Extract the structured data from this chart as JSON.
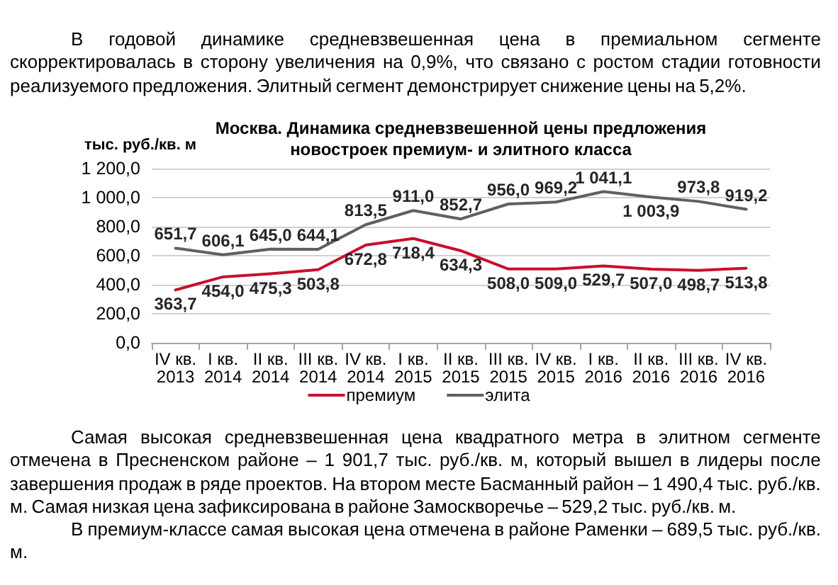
{
  "chart_data": {
    "type": "line",
    "title": "Москва. Динамика средневзвешенной цены предложения новостроек премиум- и элитного класса",
    "ylabel": "тыс. руб./кв. м",
    "categories": [
      "IV кв. 2013",
      "I кв. 2014",
      "II кв. 2014",
      "III кв. 2014",
      "IV кв. 2014",
      "I кв. 2015",
      "II кв. 2015",
      "III кв. 2015",
      "IV кв. 2015",
      "I кв. 2016",
      "II кв. 2016",
      "III кв. 2016",
      "IV кв. 2016"
    ],
    "series": [
      {
        "name": "премиум",
        "color": "#c8102e",
        "values": [
          363.7,
          454.0,
          475.3,
          503.8,
          672.8,
          718.4,
          634.3,
          508.0,
          509.0,
          529.7,
          507.0,
          498.7,
          513.8
        ],
        "value_labels": [
          "363,7",
          "454,0",
          "475,3",
          "503,8",
          "672,8",
          "718,4",
          "634,3",
          "508,0",
          "509,0",
          "529,7",
          "507,0",
          "498,7",
          "513,8"
        ]
      },
      {
        "name": "элита",
        "color": "#606060",
        "values": [
          651.7,
          606.1,
          645.0,
          644.1,
          813.5,
          911.0,
          852.7,
          956.0,
          969.2,
          1041.1,
          1003.9,
          973.8,
          919.2
        ],
        "value_labels": [
          "651,7",
          "606,1",
          "645,0",
          "644,1",
          "813,5",
          "911,0",
          "852,7",
          "956,0",
          "969,2",
          "1 041,1",
          "1 003,9",
          "973,8",
          "919,2"
        ]
      }
    ],
    "ylim": [
      0,
      1200
    ],
    "yticks": [
      {
        "value": 0,
        "label": "0,0"
      },
      {
        "value": 200,
        "label": "200,0"
      },
      {
        "value": 400,
        "label": "400,0"
      },
      {
        "value": 600,
        "label": "600,0"
      },
      {
        "value": 800,
        "label": "800,0"
      },
      {
        "value": 1000,
        "label": "1 000,0"
      },
      {
        "value": 1200,
        "label": "1 200,0"
      }
    ],
    "grid": "y",
    "legend": "bottom",
    "marker": "none",
    "annotations": [
      "В годовой динамике средневзвешенная цена в премиальном сегменте скорректировалась в сторону увеличения на 0,9%, что связано с ростом стадии готовности реализуемого предложения. Элитный сегмент демонстрирует снижение цены на 5,2%.",
      "Самая высокая средневзвешенная цена квадратного метра в элитном сегменте отмечена в Пресненском районе – 1 901,7 тыс. руб./кв. м, который вышел в лидеры после завершения продаж в ряде проектов. На втором месте Басманный район – 1 490,4 тыс. руб./кв. м. Самая низкая цена зафиксирована в районе Замоскворечье – 529,2 тыс. руб./кв. м.",
      "В премиум-классе самая высокая цена отмечена в районе Раменки – 689,5 тыс. руб./кв. м."
    ]
  }
}
